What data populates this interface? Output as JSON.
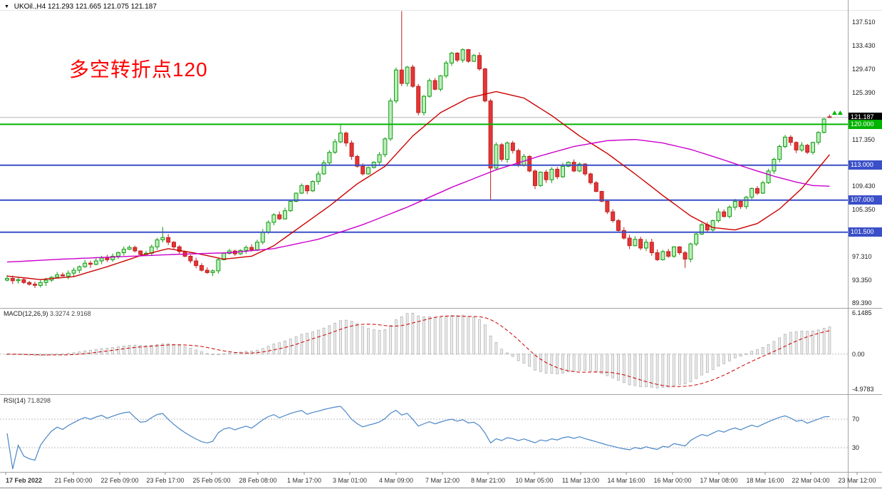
{
  "header": {
    "symbol_title": "UKOil.,H4",
    "ohlc_values": "121.293 121.665 121.075 121.187"
  },
  "annotation": {
    "text": "多空转折点120",
    "color": "#ff0000"
  },
  "indicators": {
    "macd_label": "MACD(12,26,9)",
    "macd_values": "3.3274 2.9168",
    "rsi_label": "RSI(14)",
    "rsi_value": "71.8298"
  },
  "colors": {
    "up_fill": "#b9efb9",
    "up_stroke": "#149a14",
    "down_fill": "#e63535",
    "down_stroke": "#bf2222",
    "ma_fast": "#cc0000",
    "ma_slow": "#cc00cc",
    "hline_green": "#00b400",
    "hline_blue": "#3a4fc8",
    "current_line": "#b5b5b5",
    "macd_bar_fill": "#ededed",
    "macd_bar_stroke": "#ababab",
    "macd_signal": "#cc0000",
    "rsi_line": "#4a86c8",
    "level_dash": "#bdbdbd"
  },
  "price_axis": {
    "labels": [
      "137.510",
      "133.430",
      "129.470",
      "125.390",
      "117.350",
      "109.430",
      "105.350",
      "97.310",
      "93.350",
      "89.390"
    ],
    "badges": [
      {
        "text": "121.187",
        "bg": "#000000"
      },
      {
        "text": "120.000",
        "bg": "#00b400"
      },
      {
        "text": "113.000",
        "bg": "#3a4fc8"
      },
      {
        "text": "107.000",
        "bg": "#3a4fc8"
      },
      {
        "text": "101.500",
        "bg": "#3a4fc8"
      }
    ]
  },
  "macd_axis": [
    "6.1485",
    "0.00",
    "-4.9783"
  ],
  "rsi_axis": [
    "70",
    "30"
  ],
  "time_axis": [
    "17 Feb 2022",
    "21 Feb 00:00",
    "22 Feb 09:00",
    "23 Feb 17:00",
    "25 Feb 05:00",
    "28 Feb 08:00",
    "1 Mar 17:00",
    "3 Mar 01:00",
    "4 Mar 09:00",
    "7 Mar 12:00",
    "8 Mar 21:00",
    "10 Mar 05:00",
    "11 Mar 13:00",
    "14 Mar 16:00",
    "16 Mar 00:00",
    "17 Mar 08:00",
    "18 Mar 16:00",
    "22 Mar 04:00",
    "23 Mar 12:00"
  ],
  "chart_data": {
    "type": "candlestick",
    "symbol": "UKOil",
    "timeframe": "H4",
    "title": "UKOil.,H4 121.293 121.665 121.075 121.187",
    "current_ohlc": {
      "open": 121.293,
      "high": 121.665,
      "low": 121.075,
      "close": 121.187
    },
    "visible_price_range": [
      89.39,
      137.51
    ],
    "first_open": 93.3,
    "closes": [
      93.6,
      93.2,
      93.4,
      92.9,
      92.6,
      92.4,
      92.9,
      93.3,
      93.8,
      94.2,
      94.0,
      94.5,
      95.0,
      95.6,
      96.2,
      96.0,
      96.6,
      97.1,
      96.8,
      97.4,
      98.0,
      98.6,
      98.9,
      98.3,
      97.7,
      97.9,
      99.0,
      100.2,
      100.6,
      99.8,
      99.0,
      98.2,
      97.4,
      96.6,
      95.8,
      95.0,
      94.6,
      94.9,
      96.8,
      97.9,
      98.3,
      97.8,
      98.4,
      98.9,
      98.5,
      99.8,
      101.5,
      103.2,
      104.5,
      103.8,
      105.2,
      106.8,
      108.2,
      109.5,
      108.6,
      110.2,
      111.5,
      113.4,
      115.2,
      117.0,
      118.5,
      116.8,
      114.5,
      112.8,
      111.5,
      112.6,
      113.5,
      114.8,
      117.5,
      124.0,
      129.3,
      127.0,
      129.8,
      126.5,
      122.0,
      124.8,
      127.5,
      126.0,
      128.3,
      130.5,
      132.2,
      131.0,
      132.8,
      130.8,
      131.8,
      129.5,
      124.0,
      112.5,
      116.5,
      114.0,
      116.8,
      115.5,
      113.0,
      114.5,
      112.0,
      109.5,
      111.8,
      110.5,
      112.3,
      111.0,
      112.8,
      113.5,
      112.0,
      113.2,
      111.5,
      110.0,
      108.5,
      106.8,
      105.0,
      103.5,
      101.8,
      100.5,
      99.2,
      100.3,
      98.8,
      99.8,
      98.0,
      96.8,
      98.2,
      97.4,
      99.0,
      98.0,
      96.9,
      99.5,
      101.2,
      102.8,
      101.9,
      103.5,
      105.0,
      104.2,
      105.8,
      106.8,
      105.9,
      107.5,
      109.0,
      108.2,
      110.0,
      112.0,
      114.0,
      116.2,
      117.8,
      116.9,
      115.6,
      116.4,
      115.2,
      116.9,
      118.6,
      120.9,
      121.19
    ],
    "overrides": {
      "28": {
        "h": 102.4
      },
      "37": {
        "l": 94.0
      },
      "60": {
        "h": 119.9
      },
      "71": {
        "h": 139.4
      },
      "87": {
        "l": 107.0
      },
      "122": {
        "l": 95.4
      },
      "148": {
        "o": 121.293,
        "h": 121.665,
        "l": 121.075,
        "c": 121.187
      }
    },
    "hlines": [
      {
        "price": 120.0,
        "color": "#00b400",
        "width": 2
      },
      {
        "price": 113.0,
        "color": "#3a4fc8",
        "width": 2
      },
      {
        "price": 107.0,
        "color": "#3a4fc8",
        "width": 2
      },
      {
        "price": 101.5,
        "color": "#3a4fc8",
        "width": 2
      }
    ],
    "current_price_line": {
      "price": 121.187,
      "color": "#b5b5b5"
    },
    "ma_fast": {
      "name": "MA fast",
      "color": "#cc0000",
      "anchors": [
        [
          0,
          94.0
        ],
        [
          6,
          93.4
        ],
        [
          12,
          93.9
        ],
        [
          18,
          95.6
        ],
        [
          24,
          97.5
        ],
        [
          29,
          98.7
        ],
        [
          34,
          97.9
        ],
        [
          39,
          96.9
        ],
        [
          44,
          97.4
        ],
        [
          48,
          99.2
        ],
        [
          53,
          102.6
        ],
        [
          58,
          106.0
        ],
        [
          63,
          109.8
        ],
        [
          68,
          112.8
        ],
        [
          73,
          118.0
        ],
        [
          78,
          122.0
        ],
        [
          83,
          124.5
        ],
        [
          88,
          125.6
        ],
        [
          93,
          124.5
        ],
        [
          98,
          121.5
        ],
        [
          103,
          118.0
        ],
        [
          108,
          115.0
        ],
        [
          113,
          111.5
        ],
        [
          118,
          107.8
        ],
        [
          123,
          104.3
        ],
        [
          127,
          102.3
        ],
        [
          131,
          101.9
        ],
        [
          135,
          103.0
        ],
        [
          139,
          105.5
        ],
        [
          143,
          109.0
        ],
        [
          148,
          114.8
        ]
      ]
    },
    "ma_slow": {
      "name": "MA slow",
      "color": "#cc00cc",
      "anchors": [
        [
          0,
          96.4
        ],
        [
          10,
          96.9
        ],
        [
          20,
          97.3
        ],
        [
          30,
          97.7
        ],
        [
          40,
          98.0
        ],
        [
          48,
          98.7
        ],
        [
          56,
          100.3
        ],
        [
          64,
          102.8
        ],
        [
          72,
          105.8
        ],
        [
          80,
          109.2
        ],
        [
          88,
          112.2
        ],
        [
          96,
          114.6
        ],
        [
          102,
          116.2
        ],
        [
          108,
          117.2
        ],
        [
          113,
          117.4
        ],
        [
          118,
          116.8
        ],
        [
          123,
          115.7
        ],
        [
          128,
          114.2
        ],
        [
          133,
          112.6
        ],
        [
          138,
          111.1
        ],
        [
          142,
          110.1
        ],
        [
          145,
          109.5
        ],
        [
          148,
          109.4
        ]
      ]
    },
    "macd": {
      "params": [
        12,
        26,
        9
      ],
      "value": 3.3274,
      "signal": 2.9168,
      "axis_max": 6.1485,
      "axis_min": -4.9783
    },
    "rsi": {
      "period": 14,
      "value": 71.8298,
      "levels": [
        70,
        30
      ]
    },
    "markers": [
      {
        "type": "up-arrows",
        "price": 122.0,
        "color": "#00b400"
      }
    ]
  }
}
